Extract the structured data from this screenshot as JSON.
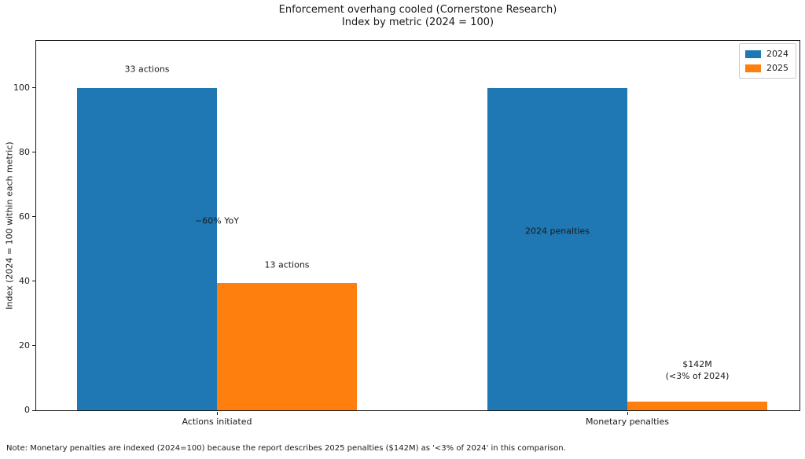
{
  "title": "Enforcement overhang cooled (Cornerstone Research)",
  "subtitle": "Index by metric (2024 = 100)",
  "footnote": "Note: Monetary penalties are indexed (2024=100) because the report describes 2025 penalties ($142M) as '<3% of 2024' in this comparison.",
  "chart_data": {
    "type": "bar",
    "title": "Enforcement overhang cooled (Cornerstone Research)",
    "subtitle": "Index by metric (2024 = 100)",
    "categories": [
      "Actions initiated",
      "Monetary penalties"
    ],
    "series": [
      {
        "name": "2024",
        "color": "#1f77b4",
        "values": [
          100,
          100
        ]
      },
      {
        "name": "2025",
        "color": "#ff7f0e",
        "values": [
          39.4,
          2.8
        ]
      }
    ],
    "ylabel": "Index (2024 = 100 within each metric)",
    "yticks": [
      0,
      20,
      40,
      60,
      80,
      100
    ],
    "ylim": [
      0,
      114.6
    ],
    "grid": false,
    "legend_position": "upper right",
    "annotations": [
      {
        "text": "33 actions",
        "category": 0,
        "anchor": "2024",
        "y": 105.5
      },
      {
        "text": "−60% YoY",
        "category": 0,
        "anchor": "center",
        "y": 58.5
      },
      {
        "text": "13 actions",
        "category": 0,
        "anchor": "2025",
        "y": 44.9
      },
      {
        "text": "2024 penalties",
        "category": 1,
        "anchor": "2024",
        "y": 55.4
      },
      {
        "text": "$142M\n(<3% of 2024)",
        "category": 1,
        "anchor": "2025",
        "y": 12.1
      }
    ]
  }
}
